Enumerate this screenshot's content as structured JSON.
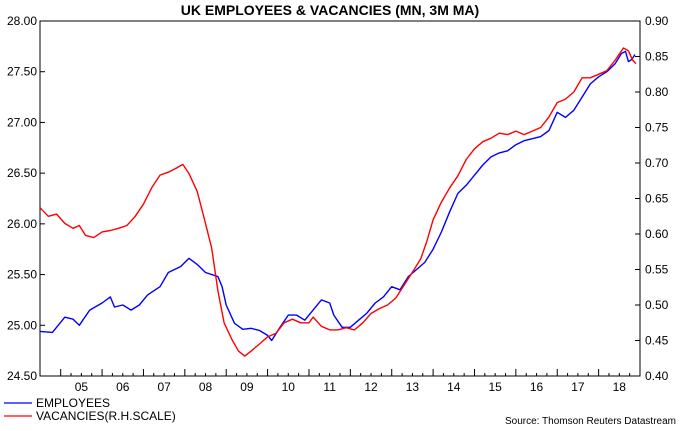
{
  "chart_data": {
    "type": "line",
    "title": "UK EMPLOYEES & VACANCIES (MN, 3M MA)",
    "x_tick_labels": [
      "05",
      "06",
      "07",
      "08",
      "09",
      "10",
      "11",
      "12",
      "13",
      "14",
      "15",
      "16",
      "17",
      "18"
    ],
    "x_range": [
      2004.5,
      2019.0
    ],
    "left_axis": {
      "range": [
        24.5,
        28.0
      ],
      "tick_labels": [
        "28.00",
        "27.50",
        "27.00",
        "26.50",
        "26.00",
        "25.50",
        "25.00",
        "24.50"
      ],
      "ticks": [
        28.0,
        27.5,
        27.0,
        26.5,
        26.0,
        25.5,
        25.0,
        24.5
      ]
    },
    "right_axis": {
      "range": [
        0.4,
        0.9
      ],
      "tick_labels": [
        "0.90",
        "0.85",
        "0.80",
        "0.75",
        "0.70",
        "0.65",
        "0.60",
        "0.55",
        "0.50",
        "0.45",
        "0.40"
      ],
      "ticks": [
        0.9,
        0.85,
        0.8,
        0.75,
        0.7,
        0.65,
        0.6,
        0.55,
        0.5,
        0.45,
        0.4
      ]
    },
    "series": [
      {
        "name": "EMPLOYEES",
        "axis": "left",
        "color": "#0000ff",
        "points": [
          [
            2004.5,
            24.94
          ],
          [
            2004.8,
            24.93
          ],
          [
            2005.1,
            25.08
          ],
          [
            2005.3,
            25.06
          ],
          [
            2005.45,
            25.0
          ],
          [
            2005.7,
            25.15
          ],
          [
            2006.0,
            25.22
          ],
          [
            2006.2,
            25.28
          ],
          [
            2006.3,
            25.18
          ],
          [
            2006.5,
            25.2
          ],
          [
            2006.7,
            25.15
          ],
          [
            2006.9,
            25.2
          ],
          [
            2007.1,
            25.3
          ],
          [
            2007.4,
            25.38
          ],
          [
            2007.6,
            25.52
          ],
          [
            2007.9,
            25.58
          ],
          [
            2008.1,
            25.66
          ],
          [
            2008.3,
            25.6
          ],
          [
            2008.5,
            25.52
          ],
          [
            2008.8,
            25.48
          ],
          [
            2008.9,
            25.38
          ],
          [
            2009.0,
            25.2
          ],
          [
            2009.2,
            25.02
          ],
          [
            2009.4,
            24.96
          ],
          [
            2009.6,
            24.97
          ],
          [
            2009.8,
            24.95
          ],
          [
            2010.0,
            24.9
          ],
          [
            2010.1,
            24.85
          ],
          [
            2010.3,
            24.98
          ],
          [
            2010.5,
            25.1
          ],
          [
            2010.7,
            25.1
          ],
          [
            2010.9,
            25.05
          ],
          [
            2011.1,
            25.15
          ],
          [
            2011.3,
            25.25
          ],
          [
            2011.5,
            25.22
          ],
          [
            2011.6,
            25.1
          ],
          [
            2011.8,
            24.98
          ],
          [
            2012.0,
            24.98
          ],
          [
            2012.2,
            25.05
          ],
          [
            2012.4,
            25.12
          ],
          [
            2012.6,
            25.22
          ],
          [
            2012.8,
            25.28
          ],
          [
            2013.0,
            25.38
          ],
          [
            2013.2,
            25.35
          ],
          [
            2013.4,
            25.48
          ],
          [
            2013.6,
            25.55
          ],
          [
            2013.8,
            25.62
          ],
          [
            2014.0,
            25.75
          ],
          [
            2014.2,
            25.92
          ],
          [
            2014.4,
            26.12
          ],
          [
            2014.6,
            26.3
          ],
          [
            2014.8,
            26.38
          ],
          [
            2015.0,
            26.48
          ],
          [
            2015.2,
            26.58
          ],
          [
            2015.4,
            26.66
          ],
          [
            2015.6,
            26.7
          ],
          [
            2015.8,
            26.72
          ],
          [
            2016.0,
            26.78
          ],
          [
            2016.2,
            26.82
          ],
          [
            2016.4,
            26.84
          ],
          [
            2016.6,
            26.86
          ],
          [
            2016.8,
            26.92
          ],
          [
            2017.0,
            27.1
          ],
          [
            2017.2,
            27.05
          ],
          [
            2017.4,
            27.12
          ],
          [
            2017.6,
            27.25
          ],
          [
            2017.8,
            27.38
          ],
          [
            2018.0,
            27.45
          ],
          [
            2018.2,
            27.5
          ],
          [
            2018.4,
            27.58
          ],
          [
            2018.55,
            27.68
          ],
          [
            2018.65,
            27.7
          ],
          [
            2018.72,
            27.6
          ],
          [
            2018.8,
            27.62
          ],
          [
            2018.88,
            27.67
          ]
        ]
      },
      {
        "name": "VACANCIES(R.H.SCALE)",
        "axis": "right",
        "color": "#ff0000",
        "points": [
          [
            2004.5,
            0.637
          ],
          [
            2004.7,
            0.625
          ],
          [
            2004.9,
            0.628
          ],
          [
            2005.1,
            0.615
          ],
          [
            2005.3,
            0.608
          ],
          [
            2005.45,
            0.612
          ],
          [
            2005.6,
            0.598
          ],
          [
            2005.8,
            0.595
          ],
          [
            2006.0,
            0.603
          ],
          [
            2006.2,
            0.605
          ],
          [
            2006.4,
            0.608
          ],
          [
            2006.6,
            0.612
          ],
          [
            2006.8,
            0.625
          ],
          [
            2007.0,
            0.642
          ],
          [
            2007.2,
            0.665
          ],
          [
            2007.4,
            0.683
          ],
          [
            2007.6,
            0.687
          ],
          [
            2007.8,
            0.693
          ],
          [
            2007.95,
            0.698
          ],
          [
            2008.1,
            0.685
          ],
          [
            2008.3,
            0.66
          ],
          [
            2008.5,
            0.615
          ],
          [
            2008.65,
            0.58
          ],
          [
            2008.8,
            0.52
          ],
          [
            2008.95,
            0.475
          ],
          [
            2009.15,
            0.45
          ],
          [
            2009.3,
            0.435
          ],
          [
            2009.45,
            0.428
          ],
          [
            2009.6,
            0.435
          ],
          [
            2009.8,
            0.445
          ],
          [
            2010.0,
            0.455
          ],
          [
            2010.2,
            0.46
          ],
          [
            2010.4,
            0.475
          ],
          [
            2010.6,
            0.48
          ],
          [
            2010.8,
            0.475
          ],
          [
            2011.0,
            0.475
          ],
          [
            2011.1,
            0.483
          ],
          [
            2011.3,
            0.47
          ],
          [
            2011.5,
            0.465
          ],
          [
            2011.7,
            0.465
          ],
          [
            2011.9,
            0.468
          ],
          [
            2012.1,
            0.465
          ],
          [
            2012.3,
            0.475
          ],
          [
            2012.5,
            0.488
          ],
          [
            2012.7,
            0.495
          ],
          [
            2012.9,
            0.5
          ],
          [
            2013.1,
            0.51
          ],
          [
            2013.3,
            0.528
          ],
          [
            2013.5,
            0.546
          ],
          [
            2013.7,
            0.565
          ],
          [
            2013.85,
            0.59
          ],
          [
            2014.0,
            0.62
          ],
          [
            2014.2,
            0.645
          ],
          [
            2014.4,
            0.665
          ],
          [
            2014.6,
            0.682
          ],
          [
            2014.8,
            0.705
          ],
          [
            2015.0,
            0.72
          ],
          [
            2015.2,
            0.73
          ],
          [
            2015.4,
            0.735
          ],
          [
            2015.6,
            0.742
          ],
          [
            2015.8,
            0.74
          ],
          [
            2016.0,
            0.745
          ],
          [
            2016.2,
            0.74
          ],
          [
            2016.4,
            0.745
          ],
          [
            2016.6,
            0.75
          ],
          [
            2016.8,
            0.765
          ],
          [
            2017.0,
            0.785
          ],
          [
            2017.2,
            0.79
          ],
          [
            2017.4,
            0.8
          ],
          [
            2017.6,
            0.82
          ],
          [
            2017.8,
            0.82
          ],
          [
            2018.0,
            0.825
          ],
          [
            2018.2,
            0.83
          ],
          [
            2018.4,
            0.845
          ],
          [
            2018.6,
            0.862
          ],
          [
            2018.72,
            0.858
          ],
          [
            2018.82,
            0.845
          ],
          [
            2018.9,
            0.84
          ]
        ]
      }
    ],
    "legend_position": "bottom-left",
    "grid": false
  },
  "footer": {
    "source": "Source: Thomson Reuters Datastream"
  }
}
